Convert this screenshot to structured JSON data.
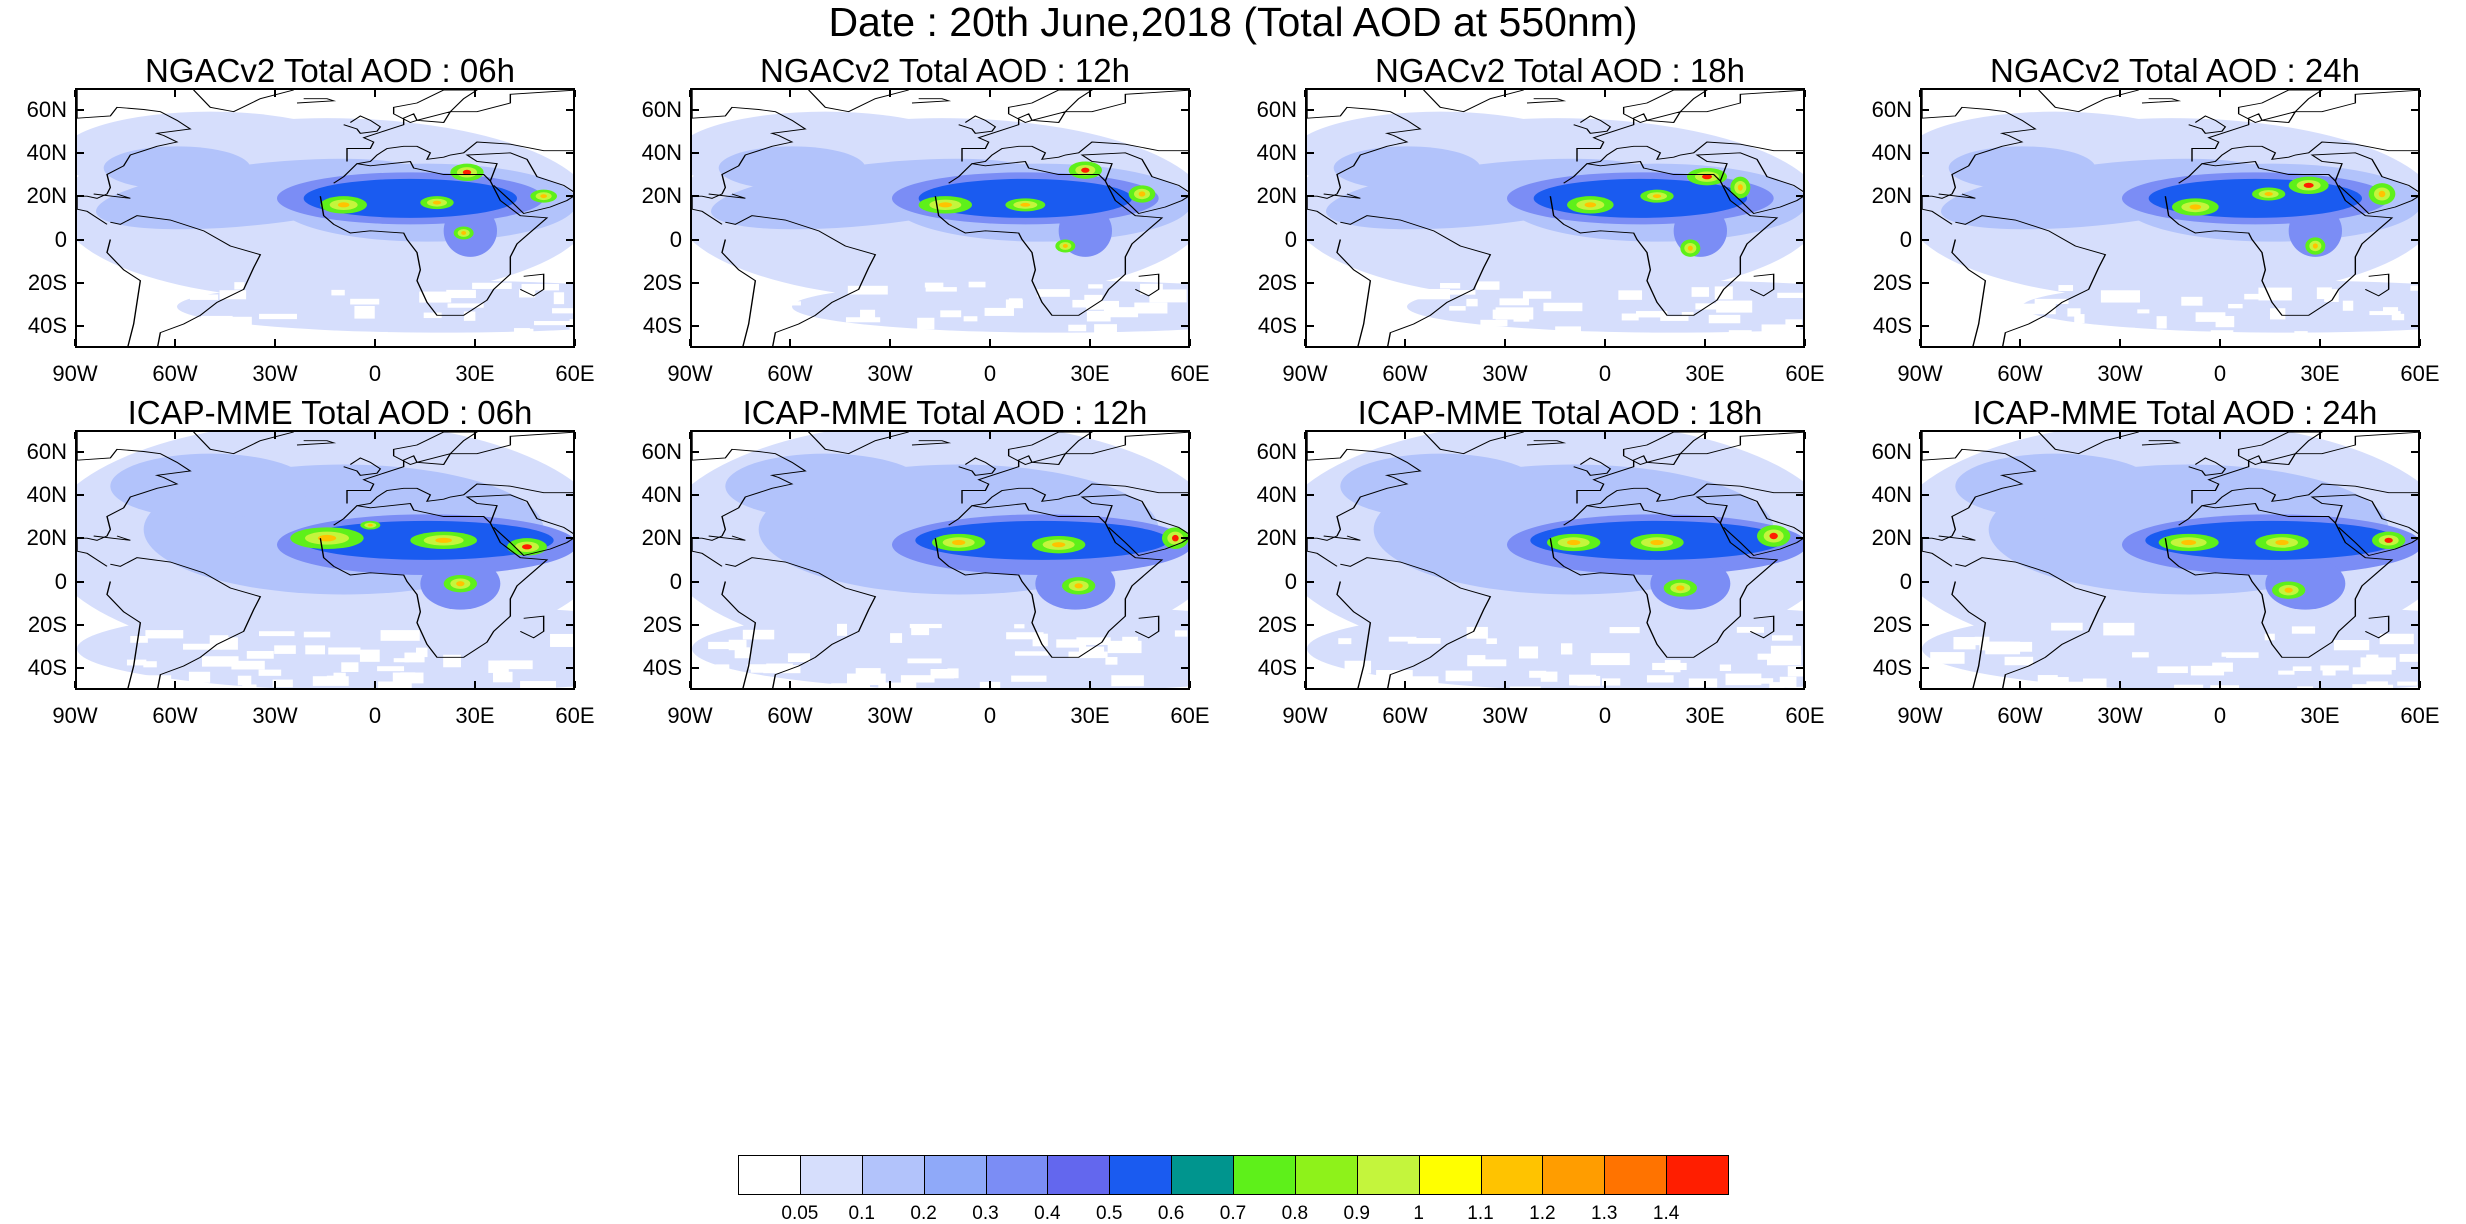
{
  "main_title": "Date : 20th June,2018 (Total AOD at 550nm)",
  "colors": {
    "levels": [
      "#ffffff",
      "#d6defc",
      "#b2c3fb",
      "#8fa9f9",
      "#7b8df5",
      "#6367ee",
      "#1a5bf0",
      "#00958e",
      "#5ef01a",
      "#8ef21a",
      "#c4f53c",
      "#ffff00",
      "#ffc300",
      "#ff9d00",
      "#ff7300",
      "#ff1e00"
    ],
    "coastline": "#000000"
  },
  "colorbar": {
    "labels": [
      "0.05",
      "0.1",
      "0.2",
      "0.3",
      "0.4",
      "0.5",
      "0.6",
      "0.7",
      "0.8",
      "0.9",
      "1",
      "1.1",
      "1.2",
      "1.3",
      "1.4"
    ]
  },
  "axes": {
    "lat_labels": [
      "60N",
      "40N",
      "20N",
      "0",
      "20S",
      "40S"
    ],
    "lon_labels": [
      "90W",
      "60W",
      "30W",
      "0",
      "30E",
      "60E"
    ]
  },
  "chart_data": {
    "type": "heatmap",
    "description_units": "Total AOD at 550nm",
    "map_extent": {
      "lon": [
        -90,
        60
      ],
      "lat": [
        -50,
        70
      ]
    },
    "lat_ticks": [
      60,
      40,
      20,
      0,
      -20,
      -40
    ],
    "lon_ticks": [
      -90,
      -60,
      -30,
      0,
      30,
      60
    ],
    "color_levels": [
      0.05,
      0.1,
      0.2,
      0.3,
      0.4,
      0.5,
      0.6,
      0.7,
      0.8,
      0.9,
      1,
      1.1,
      1.2,
      1.3,
      1.4
    ],
    "panels": [
      {
        "title": "NGACv2 Total AOD : 06h",
        "model": "NGACv2",
        "hour": 6
      },
      {
        "title": "NGACv2 Total AOD : 12h",
        "model": "NGACv2",
        "hour": 12
      },
      {
        "title": "NGACv2 Total AOD : 18h",
        "model": "NGACv2",
        "hour": 18
      },
      {
        "title": "NGACv2 Total AOD : 24h",
        "model": "NGACv2",
        "hour": 24
      },
      {
        "title": "ICAP-MME Total AOD : 06h",
        "model": "ICAP-MME",
        "hour": 6
      },
      {
        "title": "ICAP-MME Total AOD : 12h",
        "model": "ICAP-MME",
        "hour": 12
      },
      {
        "title": "ICAP-MME Total AOD : 18h",
        "model": "ICAP-MME",
        "hour": 18
      },
      {
        "title": "ICAP-MME Total AOD : 24h",
        "model": "ICAP-MME",
        "hour": 24
      }
    ]
  }
}
